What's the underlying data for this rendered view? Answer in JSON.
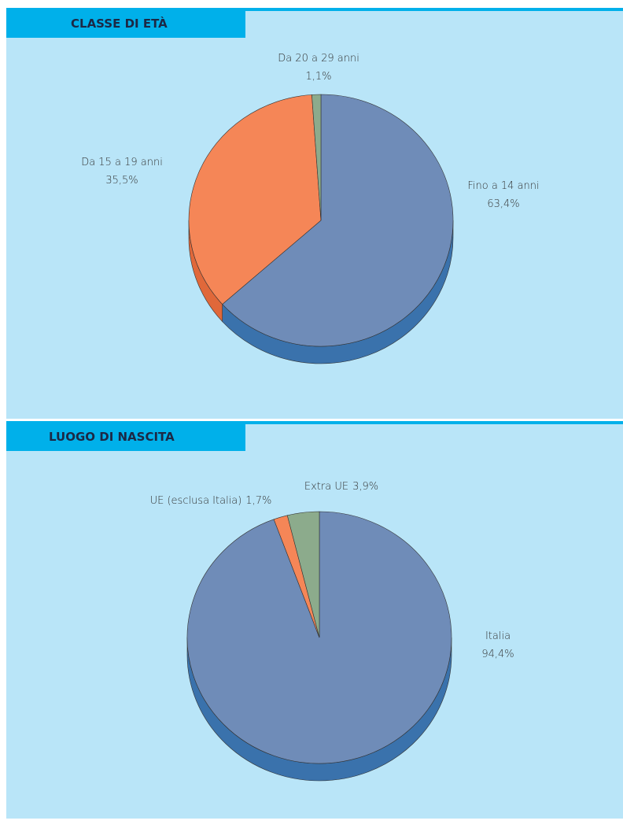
{
  "chart_data": [
    {
      "type": "pie",
      "title": "CLASSE DI ETÀ",
      "categories": [
        "Fino a 14 anni",
        "Da 15 a 19 anni",
        "Da 20 a 29 anni"
      ],
      "values": [
        63.4,
        35.5,
        1.1
      ],
      "value_labels": [
        "63,4%",
        "35,5%",
        "1,1%"
      ],
      "colors": [
        "#6f8cb8",
        "#f58657",
        "#8cab8c"
      ],
      "side_colors": [
        "#3a72ac",
        "#e0683a",
        "#5f8a62"
      ]
    },
    {
      "type": "pie",
      "title": "LUOGO DI NASCITA",
      "categories": [
        "Italia",
        "UE (esclusa Italia)",
        "Extra UE"
      ],
      "values": [
        94.4,
        1.7,
        3.9
      ],
      "value_labels": [
        "94,4%",
        "1,7%",
        "3,9%"
      ],
      "colors": [
        "#6f8cb8",
        "#f58657",
        "#8cab8c"
      ],
      "side_colors": [
        "#3a72ac",
        "#e0683a",
        "#5f8a62"
      ]
    }
  ]
}
